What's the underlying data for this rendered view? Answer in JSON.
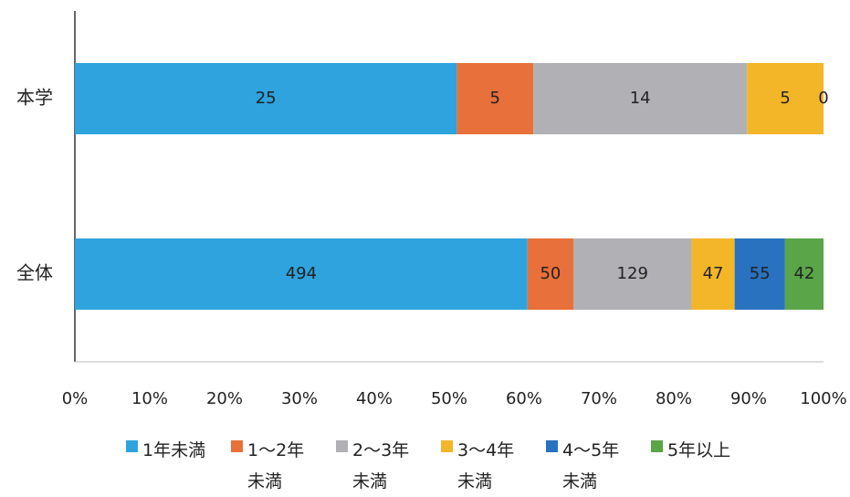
{
  "chart_data": {
    "type": "bar",
    "orientation": "horizontal",
    "stacking": "percent",
    "categories": [
      "本学",
      "全体"
    ],
    "series": [
      {
        "name": "1年未満",
        "color": "#2ea3dd",
        "values": [
          25,
          494
        ]
      },
      {
        "name": "1～2年未満",
        "color": "#e8703a",
        "values": [
          5,
          50
        ]
      },
      {
        "name": "2～3年未満",
        "color": "#b1b1b5",
        "values": [
          14,
          129
        ]
      },
      {
        "name": "3～4年未満",
        "color": "#f4b629",
        "values": [
          5,
          47
        ]
      },
      {
        "name": "4～5年未満",
        "color": "#2872c0",
        "values": [
          0,
          55
        ]
      },
      {
        "name": "5年以上",
        "color": "#5aa548",
        "values": [
          null,
          42
        ]
      }
    ],
    "xlim": [
      0,
      100
    ],
    "xticks": [
      {
        "value": 0,
        "label": "0%"
      },
      {
        "value": 10,
        "label": "10%"
      },
      {
        "value": 20,
        "label": "20%"
      },
      {
        "value": 30,
        "label": "30%"
      },
      {
        "value": 40,
        "label": "40%"
      },
      {
        "value": 50,
        "label": "50%"
      },
      {
        "value": 60,
        "label": "60%"
      },
      {
        "value": 70,
        "label": "70%"
      },
      {
        "value": 80,
        "label": "80%"
      },
      {
        "value": 90,
        "label": "90%"
      },
      {
        "value": 100,
        "label": "100%"
      }
    ],
    "legend": "bottom"
  }
}
